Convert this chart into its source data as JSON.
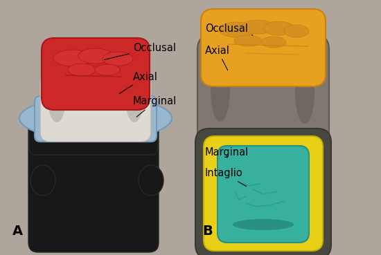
{
  "background_color": "#aea69c",
  "colors": {
    "red": "#cc2828",
    "red_dark": "#a81818",
    "white_crown": "#dddad4",
    "blue": "#98b8d0",
    "blue_dark": "#7898b8",
    "black": "#181818",
    "black_mid": "#282828",
    "orange": "#e8a020",
    "orange_dark": "#c88010",
    "gray_crown": "#807870",
    "gray_dark": "#605850",
    "yellow": "#e8d018",
    "yellow_dark": "#c8b008",
    "teal": "#38b0a0",
    "teal_dark": "#289080",
    "dark_shell": "#484840"
  },
  "labels": {
    "occlusal_A": "Occlusal",
    "axial_A": "Axial",
    "marginal_A": "Marginal",
    "occlusal_B": "Occlusal",
    "axial_B": "Axial",
    "marginal_B": "Marginal",
    "intaglio_B": "Intaglio"
  },
  "panel_A": "A",
  "panel_B": "B",
  "font_size": 10.5,
  "panel_font_size": 14
}
